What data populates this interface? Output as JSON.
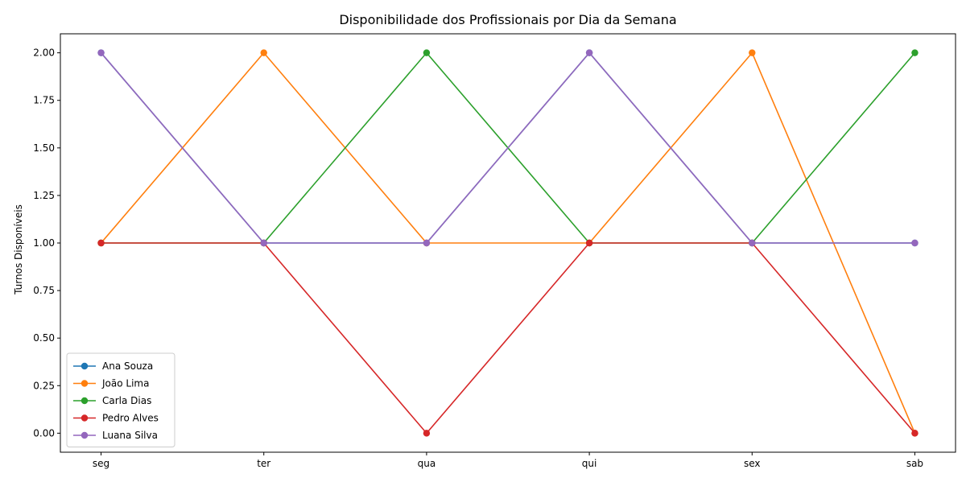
{
  "chart_data": {
    "type": "line",
    "title": "Disponibilidade dos Profissionais por Dia da Semana",
    "xlabel": "",
    "ylabel": "Turnos Disponíveis",
    "categories": [
      "seg",
      "ter",
      "qua",
      "qui",
      "sex",
      "sab"
    ],
    "ylim": [
      -0.1,
      2.1
    ],
    "yticks": [
      "0.00",
      "0.25",
      "0.50",
      "0.75",
      "1.00",
      "1.25",
      "1.50",
      "1.75",
      "2.00"
    ],
    "grid": false,
    "legend_position": "lower-left",
    "markers": true,
    "series": [
      {
        "name": "Ana Souza",
        "color": "#1f77b4",
        "values": [
          2,
          1,
          1,
          2,
          1,
          1
        ]
      },
      {
        "name": "João Lima",
        "color": "#ff7f0e",
        "values": [
          1,
          2,
          1,
          1,
          2,
          0
        ]
      },
      {
        "name": "Carla Dias",
        "color": "#2ca02c",
        "values": [
          1,
          1,
          2,
          1,
          1,
          2
        ]
      },
      {
        "name": "Pedro Alves",
        "color": "#d62728",
        "values": [
          1,
          1,
          0,
          1,
          1,
          0
        ]
      },
      {
        "name": "Luana Silva",
        "color": "#9467bd",
        "values": [
          2,
          1,
          1,
          2,
          1,
          1
        ]
      }
    ]
  }
}
